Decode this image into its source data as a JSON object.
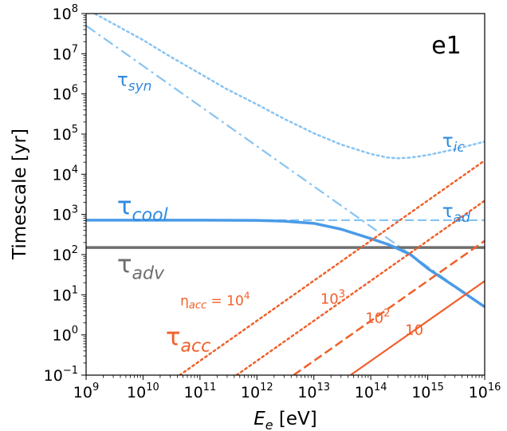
{
  "chart_data": {
    "type": "line",
    "panel_label": "e1",
    "xlabel": {
      "main": "E",
      "sub": "e",
      "rest": " [eV]"
    },
    "ylabel": "Timescale [yr]",
    "xscale": "log",
    "yscale": "log",
    "xlim": [
      1000000000.0,
      1e+16
    ],
    "ylim": [
      0.1,
      100000000.0
    ],
    "x_ticks": [
      {
        "value": 1000000000.0,
        "base": "10",
        "exp": "9"
      },
      {
        "value": 10000000000.0,
        "base": "10",
        "exp": "10"
      },
      {
        "value": 100000000000.0,
        "base": "10",
        "exp": "11"
      },
      {
        "value": 1000000000000.0,
        "base": "10",
        "exp": "12"
      },
      {
        "value": 10000000000000.0,
        "base": "10",
        "exp": "13"
      },
      {
        "value": 100000000000000.0,
        "base": "10",
        "exp": "14"
      },
      {
        "value": 1000000000000000.0,
        "base": "10",
        "exp": "15"
      },
      {
        "value": 1e+16,
        "base": "10",
        "exp": "16"
      }
    ],
    "y_ticks": [
      {
        "value": 0.1,
        "base": "10",
        "exp": "−1"
      },
      {
        "value": 1,
        "base": "10",
        "exp": "0"
      },
      {
        "value": 10,
        "base": "10",
        "exp": "1"
      },
      {
        "value": 100,
        "base": "10",
        "exp": "2"
      },
      {
        "value": 1000.0,
        "base": "10",
        "exp": "3"
      },
      {
        "value": 10000.0,
        "base": "10",
        "exp": "4"
      },
      {
        "value": 100000.0,
        "base": "10",
        "exp": "5"
      },
      {
        "value": 1000000.0,
        "base": "10",
        "exp": "6"
      },
      {
        "value": 10000000.0,
        "base": "10",
        "exp": "7"
      },
      {
        "value": 100000000.0,
        "base": "10",
        "exp": "8"
      }
    ],
    "series": [
      {
        "key": "syn",
        "color": "#88c4f2",
        "style": "dashdot",
        "width": 2.2,
        "x": [
          1000000000.0,
          10000000000.0,
          100000000000.0,
          1000000000000.0,
          10000000000000.0,
          100000000000000.0,
          300000000000000.0,
          1000000000000000.0,
          1e+16
        ],
        "y": [
          50000000.0,
          5000000.0,
          500000.0,
          50000.0,
          5000.0,
          500,
          167,
          50,
          5
        ]
      },
      {
        "key": "ic",
        "color": "#88c4f2",
        "style": "dotted",
        "width": 2.5,
        "x": [
          1000000000.0,
          10000000000.0,
          30000000000.0,
          100000000000.0,
          300000000000.0,
          1000000000000.0,
          3000000000000.0,
          10000000000000.0,
          30000000000000.0,
          100000000000000.0,
          200000000000000.0,
          300000000000000.0,
          500000000000000.0,
          1000000000000000.0,
          3000000000000000.0,
          1e+16
        ],
        "y": [
          130000000.0,
          22000000.0,
          8500000.0,
          3200000.0,
          1300000.0,
          550000.0,
          240000.0,
          105000.0,
          55000.0,
          32000.0,
          26000.0,
          25000.0,
          26000.0,
          30000.0,
          42000.0,
          65000.0
        ]
      },
      {
        "key": "ad",
        "color": "#88c4f2",
        "style": "dashed",
        "width": 2.2,
        "x": [
          1000000000.0,
          1e+16
        ],
        "y": [
          720,
          720
        ]
      },
      {
        "key": "adv",
        "color": "#6e6e6e",
        "style": "solid",
        "width": 3.5,
        "x": [
          1000000000.0,
          1e+16
        ],
        "y": [
          150,
          150
        ]
      },
      {
        "key": "cool",
        "color": "#4a9ae8",
        "style": "solid",
        "width": 3.5,
        "x": [
          1000000000.0,
          100000000000.0,
          1000000000000.0,
          3000000000000.0,
          10000000000000.0,
          30000000000000.0,
          100000000000000.0,
          200000000000000.0,
          300000000000000.0,
          500000000000000.0,
          1000000000000000.0,
          3000000000000000.0,
          1e+16
        ],
        "y": [
          720,
          719,
          710,
          680,
          600,
          430,
          250,
          180,
          140,
          100,
          45,
          16,
          5
        ]
      },
      {
        "key": "acc_1e4",
        "color": "#f0602a",
        "style": "dotted",
        "width": 2.5,
        "x": [
          44000000000.0,
          1e+16
        ],
        "y": [
          0.1,
          22000
        ]
      },
      {
        "key": "acc_1e3",
        "color": "#f0602a",
        "style": "dotted",
        "width": 2.5,
        "x": [
          440000000000.0,
          1e+16
        ],
        "y": [
          0.1,
          2200
        ]
      },
      {
        "key": "acc_1e2",
        "color": "#f0602a",
        "style": "dashed",
        "width": 2.5,
        "x": [
          4400000000000.0,
          1e+16
        ],
        "y": [
          0.1,
          220
        ]
      },
      {
        "key": "acc_10",
        "color": "#f0602a",
        "style": "solid",
        "width": 2.2,
        "x": [
          44000000000000.0,
          1e+16
        ],
        "y": [
          0.1,
          22
        ]
      }
    ],
    "annotations": [
      {
        "key": "syn",
        "text": "τ",
        "sub": "syn",
        "color": "#2f8ae0",
        "size": 23,
        "sub_size": 17,
        "x": 3500000000.0,
        "y": 1600000.0
      },
      {
        "key": "ic",
        "text": "τ",
        "sub": "ic",
        "color": "#2f8ae0",
        "size": 23,
        "sub_size": 17,
        "x": 1800000000000000.0,
        "y": 48000.0
      },
      {
        "key": "cool",
        "text": "τ",
        "sub": "cool",
        "color": "#2f8ae0",
        "size": 31,
        "sub_size": 22,
        "x": 3500000000.0,
        "y": 1000.0
      },
      {
        "key": "ad",
        "text": "τ",
        "sub": "ad",
        "color": "#2f8ae0",
        "size": 23,
        "sub_size": 17,
        "x": 1800000000000000.0,
        "y": 850
      },
      {
        "key": "adv",
        "text": "τ",
        "sub": "adv",
        "color": "#6e6e6e",
        "size": 31,
        "sub_size": 22,
        "x": 3500000000.0,
        "y": 36
      },
      {
        "key": "acc",
        "text": "τ",
        "sub": "acc",
        "color": "#f0602a",
        "size": 31,
        "sub_size": 22,
        "x": 25000000000.0,
        "y": 0.55
      },
      {
        "key": "eta",
        "text": "η",
        "sub": "acc",
        "rest": " = 10",
        "sup": "4",
        "color": "#f0602a",
        "size": 17,
        "sub_size": 13,
        "x": 45000000000.0,
        "y": 5.5
      },
      {
        "key": "n1e3",
        "text": "10",
        "sup": "3",
        "color": "#f0602a",
        "size": 18,
        "x": 13000000000000.0,
        "y": 6.0
      },
      {
        "key": "n1e2",
        "text": "10",
        "sup": "2",
        "color": "#f0602a",
        "size": 18,
        "x": 80000000000000.0,
        "y": 2.0
      },
      {
        "key": "n10",
        "text": "10",
        "color": "#f0602a",
        "size": 18,
        "x": 400000000000000.0,
        "y": 1.0
      }
    ]
  }
}
